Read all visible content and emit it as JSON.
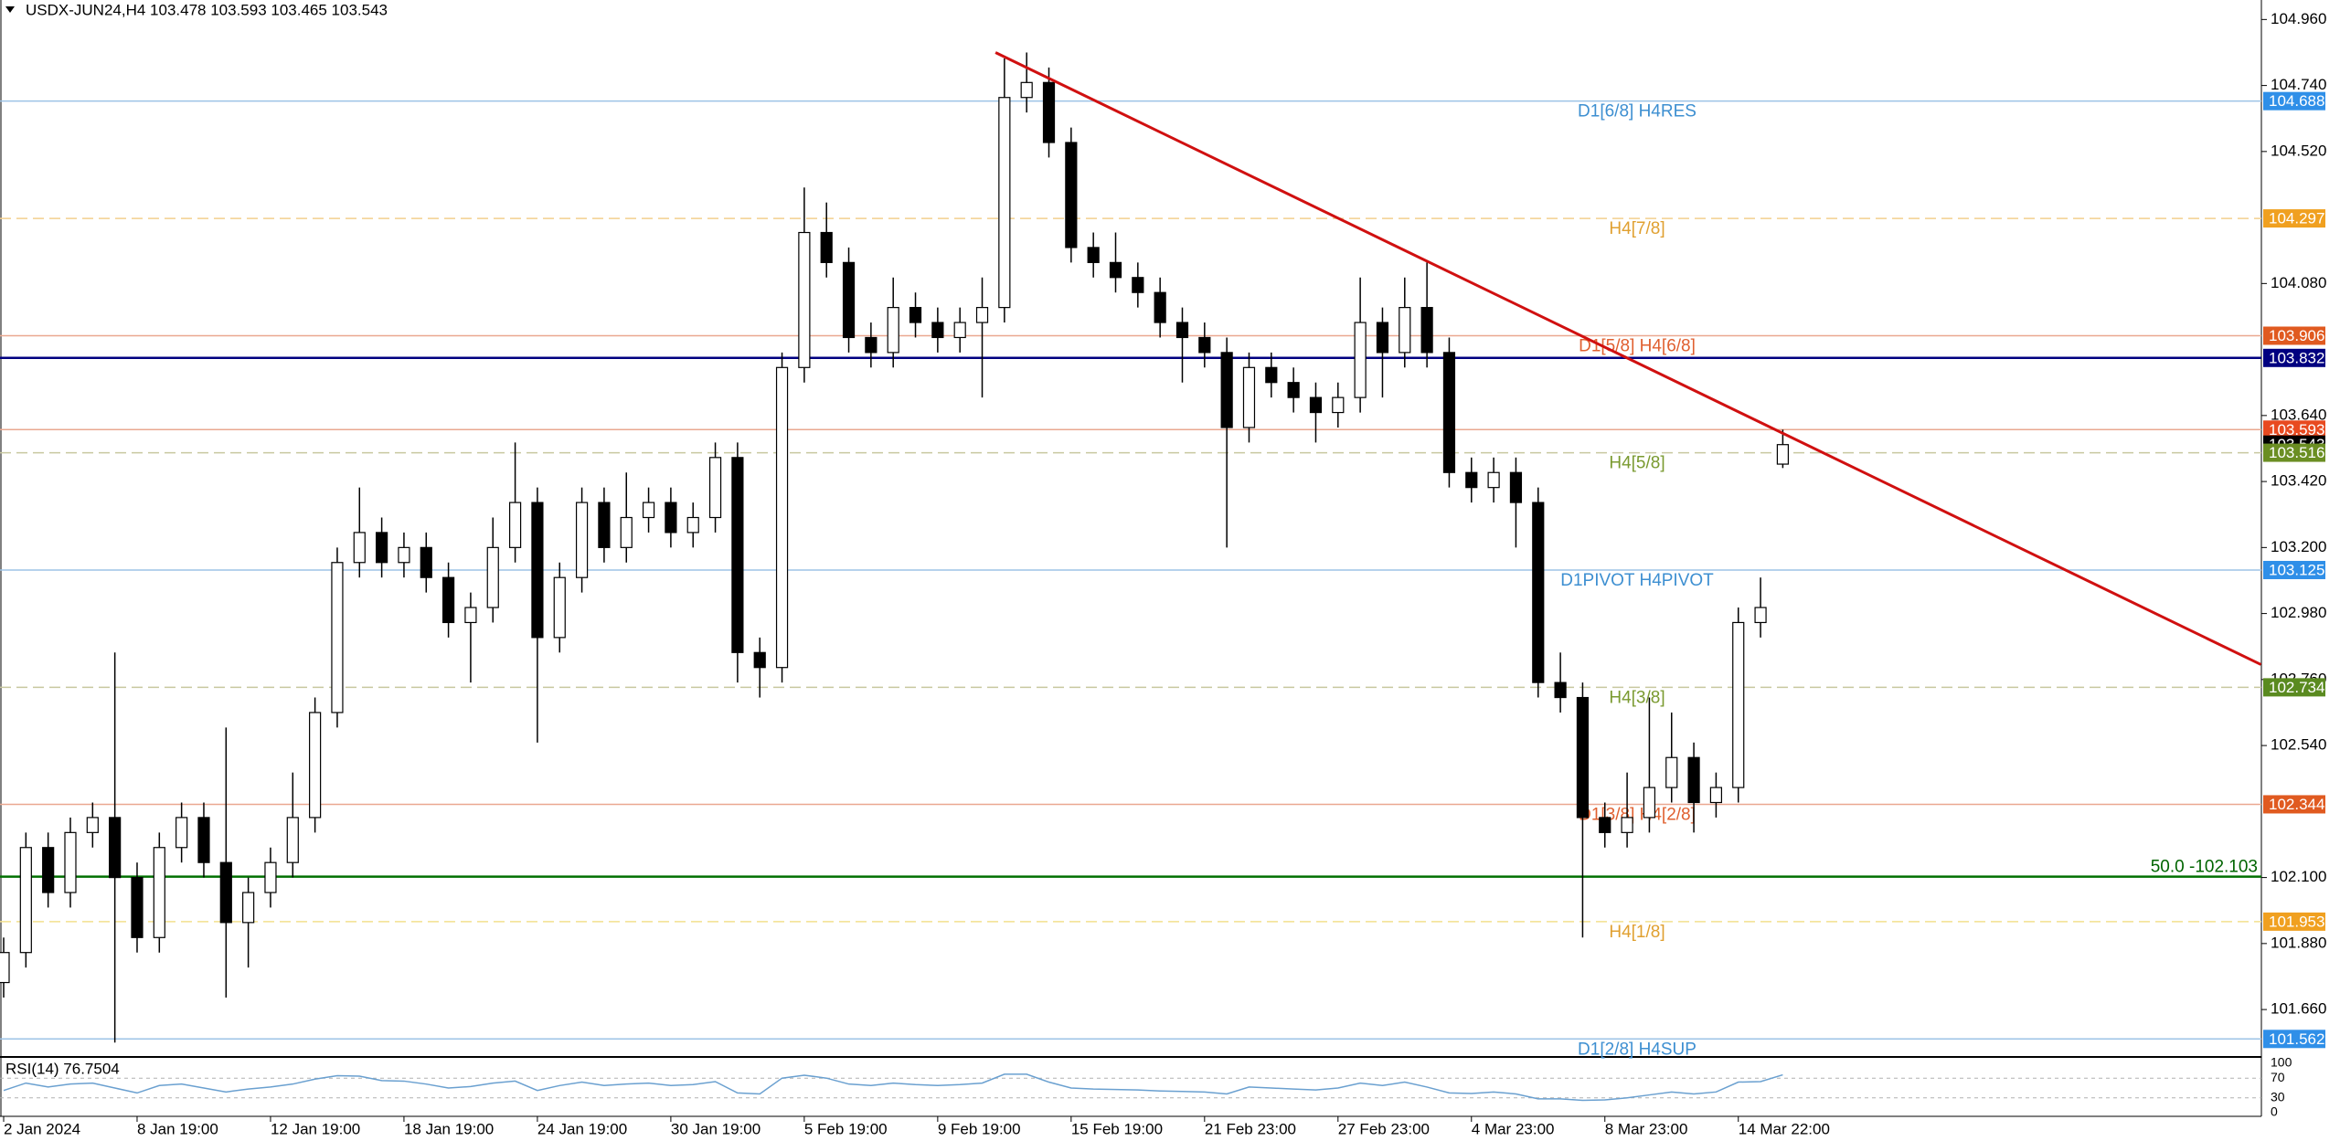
{
  "chart_data": {
    "type": "candlestick",
    "title": "USDX-JUN24,H4  103.478 103.593 103.465 103.543",
    "open": [
      101.75,
      101.85,
      102.2,
      102.05,
      102.25,
      102.3,
      102.1,
      101.9,
      102.2,
      102.3,
      102.15,
      101.95,
      102.05,
      102.15,
      102.3,
      102.65,
      103.15,
      103.25,
      103.15,
      103.2,
      103.1,
      102.95,
      103.0,
      103.2,
      103.35,
      102.9,
      103.1,
      103.35,
      103.2,
      103.3,
      103.35,
      103.25,
      103.3,
      103.5,
      102.85,
      102.8,
      103.8,
      104.25,
      104.15,
      103.9,
      103.85,
      104.0,
      103.95,
      103.9,
      103.95,
      104.0,
      104.7,
      104.75,
      104.55,
      104.2,
      104.15,
      104.1,
      104.05,
      103.95,
      103.9,
      103.85,
      103.6,
      103.8,
      103.75,
      103.7,
      103.65,
      103.7,
      103.95,
      103.85,
      104.0,
      103.85,
      103.45,
      103.4,
      103.45,
      103.35,
      102.75,
      102.7,
      102.3,
      102.25,
      102.3,
      102.4,
      102.5,
      102.35,
      102.4,
      102.95,
      103.478
    ],
    "high": [
      101.9,
      102.25,
      102.25,
      102.3,
      102.35,
      102.85,
      102.15,
      102.25,
      102.35,
      102.35,
      102.6,
      102.1,
      102.2,
      102.45,
      102.7,
      103.2,
      103.4,
      103.3,
      103.25,
      103.25,
      103.15,
      103.05,
      103.3,
      103.55,
      103.4,
      103.15,
      103.4,
      103.4,
      103.45,
      103.4,
      103.4,
      103.35,
      103.55,
      103.55,
      102.9,
      103.85,
      104.4,
      104.35,
      104.2,
      103.95,
      104.1,
      104.05,
      104.0,
      104.0,
      104.1,
      104.83,
      104.85,
      104.8,
      104.6,
      104.25,
      104.25,
      104.15,
      104.1,
      104.0,
      103.95,
      103.9,
      103.85,
      103.85,
      103.8,
      103.75,
      103.75,
      104.1,
      104.0,
      104.1,
      104.15,
      103.9,
      103.5,
      103.5,
      103.5,
      103.4,
      102.85,
      102.75,
      102.35,
      102.45,
      102.7,
      102.65,
      102.55,
      102.45,
      103.0,
      103.1,
      103.593
    ],
    "low": [
      101.7,
      101.8,
      102.0,
      102.0,
      102.2,
      101.55,
      101.85,
      101.85,
      102.15,
      102.1,
      101.7,
      101.8,
      102.0,
      102.1,
      102.25,
      102.6,
      103.1,
      103.1,
      103.1,
      103.05,
      102.9,
      102.75,
      102.95,
      103.15,
      102.55,
      102.85,
      103.05,
      103.15,
      103.15,
      103.25,
      103.2,
      103.2,
      103.25,
      102.75,
      102.7,
      102.75,
      103.75,
      104.1,
      103.85,
      103.8,
      103.8,
      103.9,
      103.85,
      103.85,
      103.7,
      103.95,
      104.65,
      104.5,
      104.15,
      104.1,
      104.05,
      104.0,
      103.9,
      103.75,
      103.8,
      103.2,
      103.55,
      103.7,
      103.65,
      103.55,
      103.6,
      103.65,
      103.7,
      103.8,
      103.8,
      103.4,
      103.35,
      103.35,
      103.2,
      102.7,
      102.65,
      101.9,
      102.2,
      102.2,
      102.25,
      102.35,
      102.25,
      102.3,
      102.35,
      102.9,
      103.465
    ],
    "close": [
      101.85,
      102.2,
      102.05,
      102.25,
      102.3,
      102.1,
      101.9,
      102.2,
      102.3,
      102.15,
      101.95,
      102.05,
      102.15,
      102.3,
      102.65,
      103.15,
      103.25,
      103.15,
      103.2,
      103.1,
      102.95,
      103.0,
      103.2,
      103.35,
      102.9,
      103.1,
      103.35,
      103.2,
      103.3,
      103.35,
      103.25,
      103.3,
      103.5,
      102.85,
      102.8,
      103.8,
      104.25,
      104.15,
      103.9,
      103.85,
      104.0,
      103.95,
      103.9,
      103.95,
      104.0,
      104.7,
      104.75,
      104.55,
      104.2,
      104.15,
      104.1,
      104.05,
      103.95,
      103.9,
      103.85,
      103.6,
      103.8,
      103.75,
      103.7,
      103.65,
      103.7,
      103.95,
      103.85,
      104.0,
      103.85,
      103.45,
      103.4,
      103.45,
      103.35,
      102.75,
      102.7,
      102.3,
      102.25,
      102.3,
      102.4,
      102.5,
      102.35,
      102.4,
      102.95,
      103.0,
      103.543
    ],
    "up_color": "#ffffff",
    "down_color": "#000000",
    "wick_color": "#000000",
    "ylim": [
      101.505,
      105.025
    ],
    "yticks": [
      {
        "value": 104.96,
        "label": "104.960"
      },
      {
        "value": 104.74,
        "label": "104.740"
      },
      {
        "value": 104.52,
        "label": "104.520"
      },
      {
        "value": 104.08,
        "label": "104.080"
      },
      {
        "value": 103.64,
        "label": "103.640"
      },
      {
        "value": 103.42,
        "label": "103.420"
      },
      {
        "value": 103.2,
        "label": "103.200"
      },
      {
        "value": 102.98,
        "label": "102.980"
      },
      {
        "value": 102.76,
        "label": "102.760"
      },
      {
        "value": 102.54,
        "label": "102.540"
      },
      {
        "value": 102.1,
        "label": "102.100"
      },
      {
        "value": 101.88,
        "label": "101.880"
      },
      {
        "value": 101.66,
        "label": "101.660"
      }
    ],
    "xticks": [
      {
        "value": 0,
        "label": "2 Jan 2024"
      },
      {
        "value": 6,
        "label": "8 Jan 19:00"
      },
      {
        "value": 12,
        "label": "12 Jan 19:00"
      },
      {
        "value": 18,
        "label": "18 Jan 19:00"
      },
      {
        "value": 24,
        "label": "24 Jan 19:00"
      },
      {
        "value": 30,
        "label": "30 Jan 19:00"
      },
      {
        "value": 36,
        "label": "5 Feb 19:00"
      },
      {
        "value": 42,
        "label": "9 Feb 19:00"
      },
      {
        "value": 48,
        "label": "15 Feb 19:00"
      },
      {
        "value": 54,
        "label": "21 Feb 23:00"
      },
      {
        "value": 60,
        "label": "27 Feb 23:00"
      },
      {
        "value": 66,
        "label": "4 Mar 23:00"
      },
      {
        "value": 72,
        "label": "8 Mar 23:00"
      },
      {
        "value": 78,
        "label": "14 Mar 22:00"
      }
    ],
    "levels": [
      {
        "price": 104.688,
        "label": "D1[6/8] H4RES",
        "color": "#9dc3e6",
        "label_color": "#3d8fd1",
        "tag_color": "#2f8fe8",
        "style": "solid"
      },
      {
        "price": 104.297,
        "label": "H4[7/8]",
        "color": "#f3cf8f",
        "label_color": "#e0a030",
        "tag_color": "#f0a020",
        "style": "dashed"
      },
      {
        "price": 103.906,
        "label": "D1[5/8] H4[6/8]",
        "color": "#eaa890",
        "label_color": "#e06030",
        "tag_color": "#e05a20",
        "style": "solid"
      },
      {
        "price": 103.832,
        "color": "#000080",
        "tag_color": "#000080",
        "style": "thick"
      },
      {
        "price": 103.593,
        "color": "#eaa890",
        "tag_color": "#e84a20",
        "style": "solid"
      },
      {
        "price": 103.543,
        "tag_color": "#000000",
        "style": "none"
      },
      {
        "price": 103.516,
        "label": "H4[5/8]",
        "color": "#c8c8a0",
        "label_color": "#7a9a30",
        "tag_color": "#6b8e23",
        "style": "dashed"
      },
      {
        "price": 103.125,
        "label": "D1PIVOT H4PIVOT",
        "color": "#9dc3e6",
        "label_color": "#3d8fd1",
        "tag_color": "#2f8fe8",
        "style": "solid"
      },
      {
        "price": 102.734,
        "label": "H4[3/8]",
        "color": "#c8c8a0",
        "label_color": "#7a9a30",
        "tag_color": "#5a8a20",
        "style": "dashed"
      },
      {
        "price": 102.344,
        "label": "D1[3/8] H4[2/8]",
        "color": "#eaa890",
        "label_color": "#e06030",
        "tag_color": "#e05a20",
        "style": "solid"
      },
      {
        "price": 102.103,
        "label": "50.0 -102.103",
        "color": "#007000",
        "label_color": "#006400",
        "style": "thick"
      },
      {
        "price": 101.953,
        "label": "H4[1/8]",
        "color": "#f3e08f",
        "label_color": "#e0a030",
        "tag_color": "#f0a020",
        "style": "dashed"
      },
      {
        "price": 101.562,
        "label": "D1[2/8] H4SUP",
        "color": "#9dc3e6",
        "label_color": "#3d8fd1",
        "tag_color": "#2f8fe8",
        "style": "solid"
      }
    ],
    "trendline": {
      "x": [
        44.6,
        101.5
      ],
      "y": [
        104.85,
        102.81
      ],
      "color": "#d01010"
    },
    "rsi": {
      "title": "RSI(14) 76.7504",
      "values": [
        45,
        60,
        52,
        58,
        60,
        50,
        40,
        55,
        58,
        50,
        42,
        48,
        52,
        58,
        68,
        75,
        74,
        65,
        64,
        58,
        50,
        53,
        60,
        64,
        45,
        55,
        62,
        55,
        58,
        60,
        55,
        57,
        63,
        40,
        38,
        70,
        76,
        70,
        58,
        55,
        60,
        57,
        55,
        57,
        60,
        78,
        78,
        62,
        50,
        48,
        47,
        46,
        44,
        43,
        42,
        38,
        52,
        50,
        48,
        46,
        50,
        60,
        55,
        62,
        52,
        40,
        39,
        42,
        38,
        28,
        28,
        25,
        26,
        30,
        36,
        42,
        38,
        42,
        62,
        63,
        76.7504
      ],
      "color": "#6aa0d0",
      "ylim": [
        0,
        100
      ],
      "yticks": [
        100,
        70,
        30,
        0
      ]
    }
  }
}
